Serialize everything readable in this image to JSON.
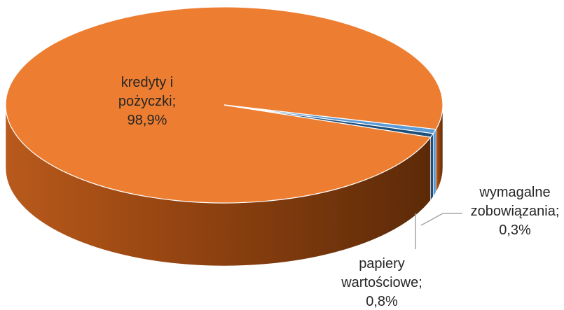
{
  "chart_data": {
    "type": "pie",
    "title": "",
    "slices": [
      {
        "label_lines": [
          "kredyty i",
          "pożyczki;",
          "98,9%"
        ],
        "name": "kredyty i pożyczki",
        "value": 98.9,
        "color": "#ED7D31"
      },
      {
        "label_lines": [
          "papiery",
          "wartościowe;",
          "0,8%"
        ],
        "name": "papiery wartościowe",
        "value": 0.8,
        "color": "#5B9BD5"
      },
      {
        "label_lines": [
          "wymagalne",
          "zobowiązania;",
          "0,3%"
        ],
        "name": "wymagalne zobowiązania",
        "value": 0.3,
        "color": "#1F4E79"
      }
    ],
    "style": "3d",
    "legend": "none"
  }
}
